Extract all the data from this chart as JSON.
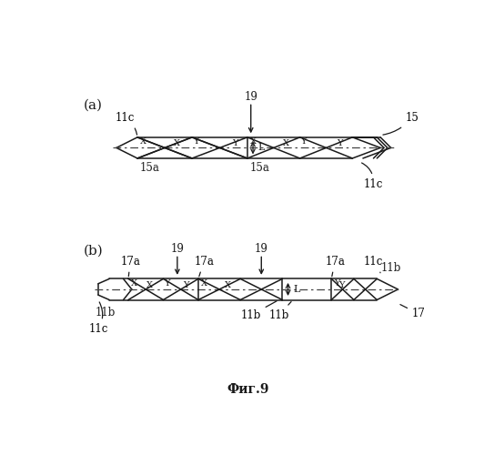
{
  "fig_width": 5.32,
  "fig_height": 5.0,
  "dpi": 100,
  "bg_color": "#ffffff",
  "line_color": "#1a1a1a",
  "dash_color": "#444444",
  "label_a": "(a)",
  "label_b": "(b)",
  "caption": "Фиг.9"
}
